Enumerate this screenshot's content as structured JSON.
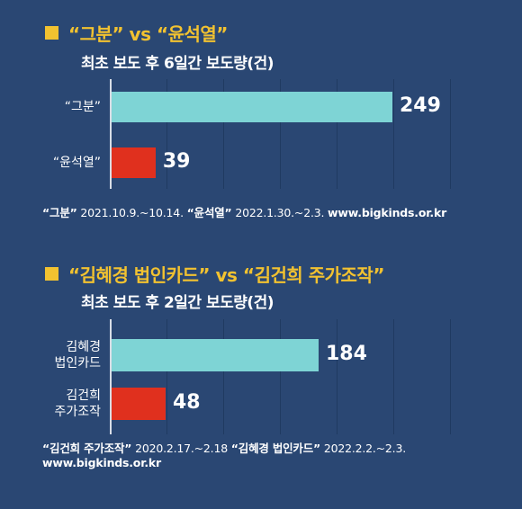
{
  "colors": {
    "background": "#2a4773",
    "accent_yellow": "#f2c230",
    "bar_cyan": "#7ed4d5",
    "bar_red": "#e0301e"
  },
  "chart_data": [
    {
      "type": "bar",
      "orientation": "horizontal",
      "title": "“그분” vs “윤석열”",
      "subtitle": "최초 보도 후 6일간 보도량(건)",
      "categories": [
        "“그분”",
        "“윤석열”"
      ],
      "values": [
        249,
        39
      ],
      "bar_colors": [
        "#7ed4d5",
        "#e0301e"
      ],
      "xlim": [
        0,
        270
      ],
      "grid": true,
      "note_parts": [
        {
          "text": "“그분”",
          "bold": true
        },
        {
          "text": " 2021.10.9.~10.14. ",
          "bold": false
        },
        {
          "text": "“윤석열”",
          "bold": true
        },
        {
          "text": " 2022.1.30.~2.3. ",
          "bold": false
        },
        {
          "text": "www.bigkinds.or.kr",
          "bold": true
        }
      ]
    },
    {
      "type": "bar",
      "orientation": "horizontal",
      "title": "“김혜경 법인카드” vs “김건희 주가조작”",
      "subtitle": "최초 보도 후 2일간 보도량(건)",
      "categories": [
        [
          "김혜경",
          "법인카드"
        ],
        [
          "김건희",
          "주가조작"
        ]
      ],
      "values": [
        184,
        48
      ],
      "bar_colors": [
        "#7ed4d5",
        "#e0301e"
      ],
      "xlim": [
        0,
        270
      ],
      "grid": true,
      "note_parts": [
        {
          "text": "“김건희 주가조작”",
          "bold": true
        },
        {
          "text": " 2020.2.17.~2.18 ",
          "bold": false
        },
        {
          "text": "“김혜경 법인카드”",
          "bold": true
        },
        {
          "text": " 2022.2.2.~2.3.",
          "bold": false
        }
      ],
      "note_line2": "www.bigkinds.or.kr"
    }
  ]
}
